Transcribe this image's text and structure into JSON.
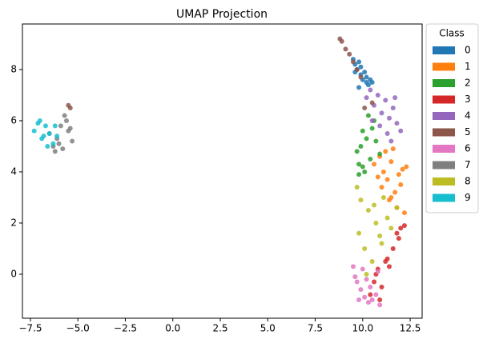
{
  "chart_data": {
    "type": "scatter",
    "title": "UMAP Projection",
    "legend_title": "Class",
    "legend": "upper-left-outside",
    "xlim": [
      -7.92,
      13.13
    ],
    "ylim": [
      -1.72,
      9.78
    ],
    "xticks": [
      {
        "value": -7.5,
        "label": "−7.5"
      },
      {
        "value": -5,
        "label": "−5.0"
      },
      {
        "value": -2.5,
        "label": "−2.5"
      },
      {
        "value": 0,
        "label": "0.0"
      },
      {
        "value": 2.5,
        "label": "2.5"
      },
      {
        "value": 5,
        "label": "5.0"
      },
      {
        "value": 7.5,
        "label": "7.5"
      },
      {
        "value": 10,
        "label": "10.0"
      },
      {
        "value": 12.5,
        "label": "12.5"
      }
    ],
    "yticks": [
      0,
      2,
      4,
      6,
      8
    ],
    "series": [
      {
        "name": "0",
        "color": "#1f77b4",
        "x": [
          9.5,
          9.6,
          9.7,
          9.8,
          9.9,
          10.0,
          10.1,
          10.2,
          10.3,
          10.4,
          10.5,
          9.6,
          9.9,
          10.2,
          9.8
        ],
        "y": [
          8.4,
          8.2,
          8.0,
          8.3,
          7.8,
          7.6,
          7.9,
          7.5,
          7.4,
          7.6,
          7.5,
          7.9,
          8.1,
          7.7,
          7.3
        ]
      },
      {
        "name": "1",
        "color": "#ff7f0e",
        "x": [
          10.6,
          10.9,
          11.1,
          11.3,
          11.5,
          11.7,
          11.9,
          12.1,
          12.3,
          11.0,
          11.4,
          11.8,
          12.0,
          11.2,
          11.6,
          10.8,
          12.2,
          11.5
        ],
        "y": [
          4.3,
          4.6,
          4.0,
          3.7,
          4.4,
          3.2,
          3.9,
          4.1,
          4.2,
          3.4,
          2.9,
          2.6,
          3.5,
          4.8,
          4.9,
          3.8,
          2.4,
          3.0
        ]
      },
      {
        "name": "2",
        "color": "#2ca02c",
        "x": [
          9.7,
          9.8,
          9.9,
          10.0,
          10.1,
          10.2,
          10.4,
          10.5,
          10.7,
          10.9,
          9.8,
          10.3,
          10.6,
          10.0
        ],
        "y": [
          4.8,
          4.3,
          5.0,
          5.6,
          4.0,
          5.3,
          4.5,
          5.7,
          5.2,
          4.7,
          3.9,
          6.2,
          6.0,
          4.2
        ]
      },
      {
        "name": "3",
        "color": "#d62728",
        "x": [
          10.4,
          10.6,
          10.8,
          11.0,
          11.2,
          11.4,
          11.6,
          11.8,
          12.0,
          12.2,
          10.9,
          11.3,
          10.7,
          11.9
        ],
        "y": [
          -0.8,
          -0.3,
          0.2,
          -0.5,
          0.5,
          0.3,
          1.0,
          1.6,
          1.8,
          1.9,
          -1.0,
          0.6,
          0.0,
          1.4
        ]
      },
      {
        "name": "4",
        "color": "#9467bd",
        "x": [
          10.2,
          10.4,
          10.6,
          10.8,
          11.0,
          11.2,
          11.4,
          11.6,
          11.8,
          12.0,
          10.9,
          11.3,
          11.7,
          10.5,
          11.5
        ],
        "y": [
          6.9,
          7.2,
          6.6,
          7.0,
          6.3,
          6.8,
          6.1,
          6.5,
          5.9,
          5.6,
          5.8,
          5.5,
          6.9,
          6.0,
          5.2
        ]
      },
      {
        "name": "5",
        "color": "#8c564b",
        "x": [
          8.8,
          8.9,
          9.1,
          9.3,
          9.5,
          9.7,
          -5.5,
          -5.4,
          10.1,
          10.5,
          9.9
        ],
        "y": [
          9.2,
          9.1,
          8.8,
          8.6,
          8.3,
          8.0,
          6.6,
          6.5,
          6.5,
          6.7,
          7.7
        ]
      },
      {
        "name": "6",
        "color": "#e377c2",
        "x": [
          9.5,
          9.7,
          9.9,
          10.1,
          10.3,
          10.5,
          10.7,
          10.9,
          9.6,
          10.0,
          10.4,
          10.8,
          9.8,
          10.2
        ],
        "y": [
          0.3,
          -0.3,
          -0.6,
          -0.9,
          -1.1,
          -1.0,
          -0.8,
          -1.2,
          -0.1,
          0.2,
          -0.5,
          0.1,
          -1.0,
          -0.2
        ]
      },
      {
        "name": "7",
        "color": "#7f7f7f",
        "x": [
          -6.5,
          -6.3,
          -6.1,
          -5.9,
          -5.7,
          -5.5,
          -5.3,
          -5.8,
          -5.6,
          -6.0,
          -5.4,
          -6.2
        ],
        "y": [
          5.5,
          5.0,
          5.3,
          5.8,
          6.2,
          5.6,
          5.2,
          4.9,
          6.0,
          5.1,
          5.7,
          4.8
        ]
      },
      {
        "name": "8",
        "color": "#bcbd22",
        "x": [
          9.7,
          9.9,
          10.1,
          10.3,
          10.5,
          10.7,
          10.9,
          11.1,
          11.3,
          11.5,
          10.2,
          10.6,
          11.0,
          11.8,
          9.8
        ],
        "y": [
          3.4,
          2.9,
          1.0,
          2.5,
          0.5,
          2.0,
          1.5,
          3.0,
          2.2,
          1.8,
          0.0,
          2.7,
          1.2,
          2.6,
          1.6
        ]
      },
      {
        "name": "9",
        "color": "#17becf",
        "x": [
          -7.3,
          -7.1,
          -6.9,
          -6.7,
          -6.5,
          -6.3,
          -6.1,
          -7.0,
          -6.6,
          -6.8,
          -6.2
        ],
        "y": [
          5.6,
          5.9,
          5.3,
          5.8,
          5.5,
          5.1,
          5.4,
          6.0,
          5.0,
          5.4,
          5.8
        ]
      }
    ]
  }
}
